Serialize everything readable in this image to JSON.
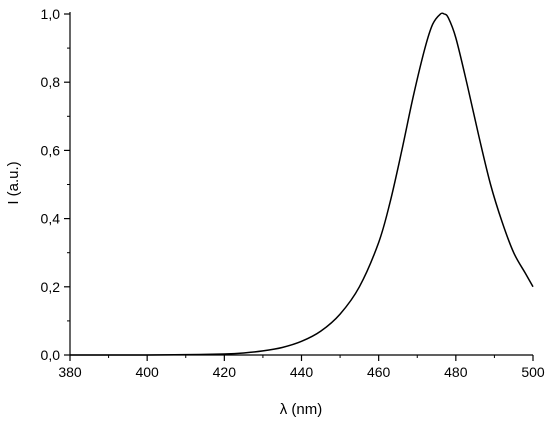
{
  "chart_data": {
    "type": "line",
    "xlabel": "λ (nm)",
    "ylabel": "I (a.u.)",
    "xlim": [
      380,
      500
    ],
    "ylim": [
      0,
      1.0
    ],
    "x_ticks": [
      380,
      400,
      420,
      440,
      460,
      480,
      500
    ],
    "x_tick_labels": [
      "380",
      "400",
      "420",
      "440",
      "460",
      "480",
      "500"
    ],
    "y_ticks": [
      0.0,
      0.2,
      0.4,
      0.6,
      0.8,
      1.0
    ],
    "y_tick_labels": [
      "0,0",
      "0,2",
      "0,4",
      "0,6",
      "0,8",
      "1,0"
    ],
    "grid": false,
    "legend": "none",
    "series": [
      {
        "x": [
          380,
          400,
          410,
          420,
          425,
          430,
          435,
          440,
          445,
          450,
          455,
          460,
          463,
          466,
          469,
          472,
          474,
          476,
          477,
          478,
          480,
          483,
          486,
          489,
          492,
          495,
          498,
          500
        ],
        "values": [
          0.0,
          0.0,
          0.001,
          0.003,
          0.006,
          0.012,
          0.022,
          0.04,
          0.07,
          0.12,
          0.2,
          0.33,
          0.45,
          0.6,
          0.76,
          0.9,
          0.97,
          1.0,
          1.0,
          0.99,
          0.93,
          0.79,
          0.64,
          0.5,
          0.39,
          0.3,
          0.24,
          0.2
        ]
      }
    ]
  }
}
